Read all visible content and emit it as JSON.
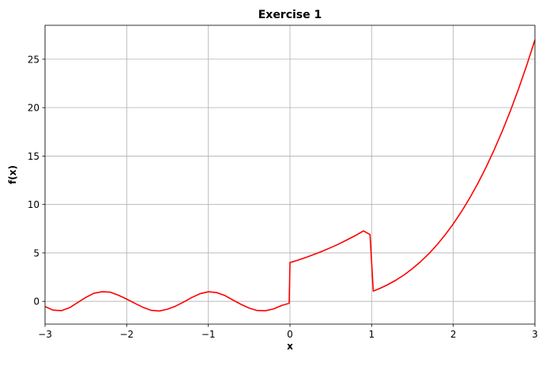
{
  "chart_data": {
    "type": "line",
    "title": "Exercise 1",
    "xlabel": "x",
    "ylabel": "f(x)",
    "xlim": [
      -3,
      3
    ],
    "ylim": [
      -2.35,
      28.5
    ],
    "grid": true,
    "xticks": [
      -3,
      -2,
      -1,
      0,
      1,
      2,
      3
    ],
    "xtick_labels": [
      "−3",
      "−2",
      "−1",
      "0",
      "1",
      "2",
      "3"
    ],
    "yticks": [
      0,
      5,
      10,
      15,
      20,
      25
    ],
    "ytick_labels": [
      "0",
      "5",
      "10",
      "15",
      "20",
      "25"
    ],
    "series": [
      {
        "color": "#ff0000",
        "x": [
          -3.0,
          -2.9,
          -2.8,
          -2.7,
          -2.6,
          -2.5,
          -2.4,
          -2.3,
          -2.2,
          -2.1,
          -2.0,
          -1.9,
          -1.8,
          -1.7,
          -1.6,
          -1.5,
          -1.4,
          -1.3,
          -1.2,
          -1.1,
          -1.0,
          -0.9,
          -0.8,
          -0.7,
          -0.6,
          -0.5,
          -0.4,
          -0.3,
          -0.2,
          -0.1,
          -0.01,
          0.0,
          0.1,
          0.2,
          0.3,
          0.4,
          0.5,
          0.6,
          0.7,
          0.8,
          0.9,
          0.98,
          1.02,
          1.1,
          1.2,
          1.3,
          1.4,
          1.5,
          1.6,
          1.7,
          1.8,
          1.9,
          2.0,
          2.1,
          2.2,
          2.3,
          2.4,
          2.5,
          2.6,
          2.7,
          2.8,
          2.9,
          3.0
        ],
        "y": [
          -0.54,
          -0.91,
          -0.96,
          -0.66,
          -0.12,
          0.41,
          0.84,
          0.99,
          0.95,
          0.63,
          0.23,
          -0.2,
          -0.62,
          -0.93,
          -1.0,
          -0.81,
          -0.49,
          -0.06,
          0.41,
          0.79,
          0.99,
          0.91,
          0.61,
          0.14,
          -0.31,
          -0.7,
          -0.95,
          -0.97,
          -0.78,
          -0.42,
          -0.2,
          4.0,
          4.26,
          4.55,
          4.86,
          5.19,
          5.55,
          5.93,
          6.35,
          6.79,
          7.27,
          6.9,
          1.06,
          1.33,
          1.73,
          2.2,
          2.74,
          3.38,
          4.1,
          4.91,
          5.83,
          6.86,
          8.0,
          9.26,
          10.65,
          12.17,
          13.82,
          15.63,
          17.58,
          19.68,
          21.95,
          24.39,
          27.0
        ]
      }
    ]
  }
}
